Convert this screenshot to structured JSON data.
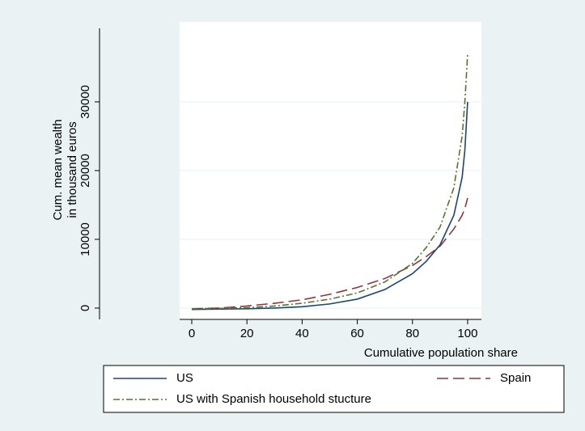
{
  "chart_data": {
    "type": "line",
    "xlabel": "Cumulative population share",
    "ylabel": [
      "Cum. mean wealth",
      "in thousand euros"
    ],
    "x": [
      0,
      10,
      20,
      30,
      40,
      50,
      60,
      70,
      80,
      85,
      90,
      95,
      98,
      99,
      100
    ],
    "series": [
      {
        "name": "US",
        "color": "#1a476f",
        "dash": "none",
        "values": [
          -200,
          -150,
          -100,
          0,
          200,
          600,
          1300,
          2700,
          5000,
          6800,
          9200,
          13500,
          19000,
          23000,
          30000
        ]
      },
      {
        "name": "Spain",
        "color": "#90353b",
        "dash": "14 6",
        "values": [
          -100,
          0,
          300,
          700,
          1200,
          2000,
          3000,
          4300,
          6200,
          7500,
          9000,
          11500,
          13500,
          14500,
          16000
        ]
      },
      {
        "name": "US with Spanish household stucture",
        "color": "#55752f",
        "dash": "8 3 2 3",
        "values": [
          -100,
          -50,
          50,
          300,
          700,
          1300,
          2200,
          3800,
          6500,
          8800,
          11800,
          17500,
          25000,
          30000,
          37000
        ]
      }
    ],
    "xlim": [
      -4.4,
      105
    ],
    "xticks": [
      0,
      20,
      40,
      60,
      80,
      100
    ],
    "ylim": [
      -1650,
      40700
    ],
    "yticks": [
      0,
      10000,
      20000,
      30000
    ],
    "grid": true
  }
}
